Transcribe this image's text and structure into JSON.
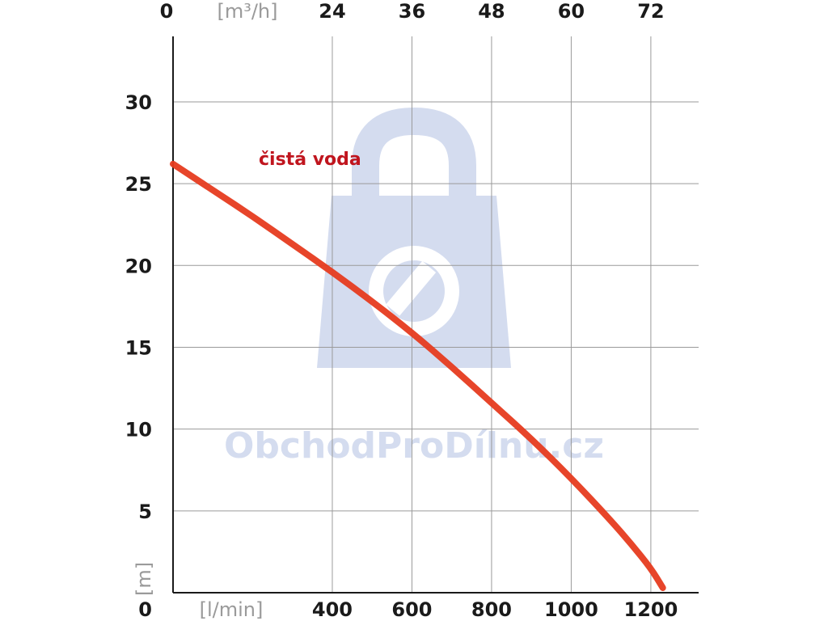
{
  "chart_data": {
    "type": "line",
    "title": "",
    "x_bottom": {
      "unit": "[l/min]",
      "tick_labels": [
        "0",
        "400",
        "600",
        "800",
        "1000",
        "1200"
      ],
      "ticks": [
        0,
        400,
        600,
        800,
        1000,
        1200
      ],
      "range": [
        0,
        1320
      ]
    },
    "x_top": {
      "unit": "[m³/h]",
      "tick_labels": [
        "0",
        "24",
        "36",
        "48",
        "60",
        "72"
      ],
      "ticks": [
        0,
        24,
        36,
        48,
        60,
        72
      ]
    },
    "y": {
      "unit": "[m]",
      "tick_labels": [
        "0",
        "5",
        "10",
        "15",
        "20",
        "25",
        "30"
      ],
      "ticks": [
        0,
        5,
        10,
        15,
        20,
        25,
        30
      ],
      "range": [
        0,
        34
      ]
    },
    "grid": true,
    "series": [
      {
        "name": "čistá voda",
        "color": "#e63b1f",
        "x": [
          0,
          100,
          200,
          300,
          400,
          500,
          600,
          700,
          800,
          900,
          1000,
          1100,
          1150,
          1200,
          1230
        ],
        "y": [
          26.2,
          24.6,
          23.0,
          21.3,
          19.6,
          17.8,
          15.9,
          13.8,
          11.6,
          9.4,
          7.0,
          4.4,
          3.0,
          1.5,
          0.3
        ]
      }
    ]
  },
  "watermark": {
    "text": "ObchodProDílnu.cz",
    "color": "#d4dcef",
    "icon": "shopping-bag-wrench-icon"
  },
  "label_color": "#c0151e"
}
